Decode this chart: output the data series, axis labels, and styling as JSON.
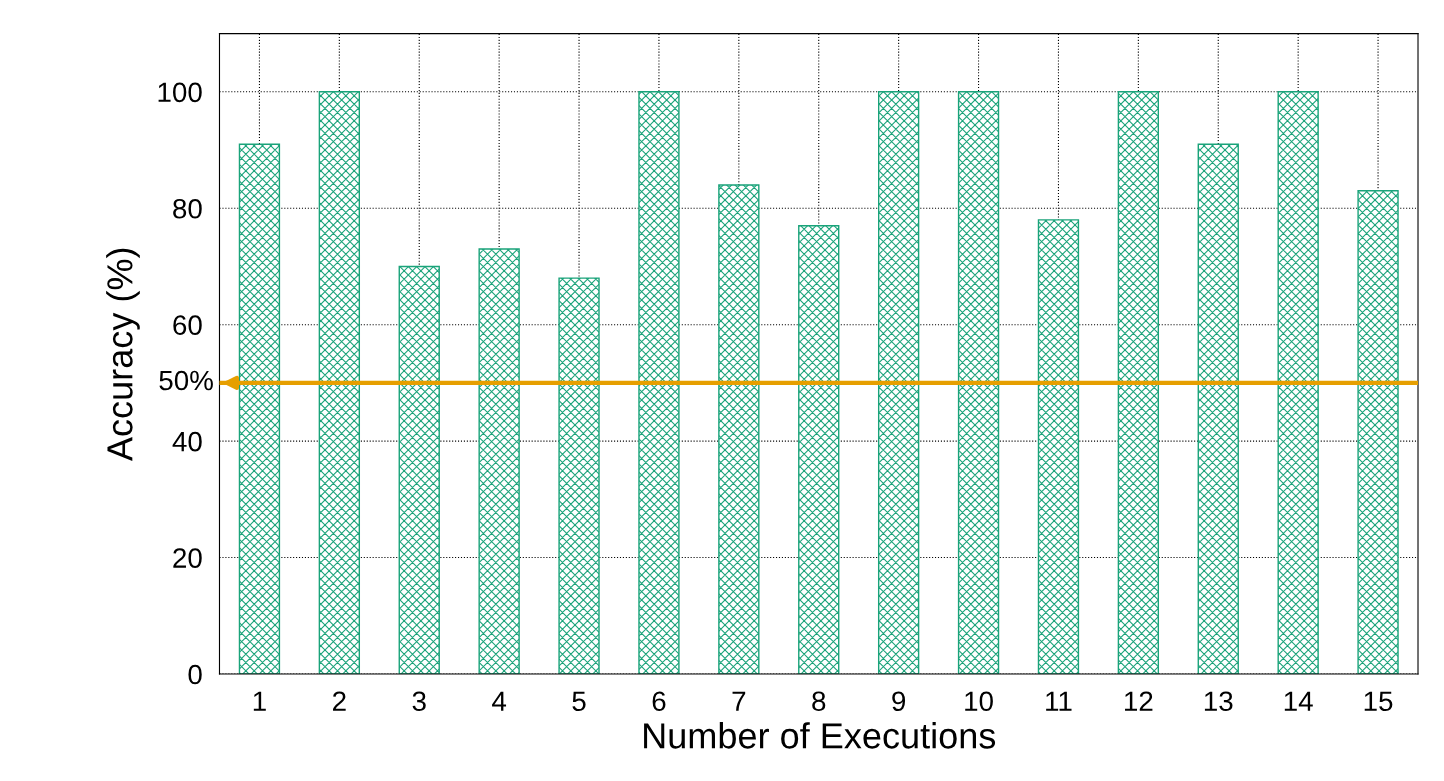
{
  "chart_data": {
    "type": "bar",
    "xlabel": "Number of Executions",
    "ylabel": "Accuracy (%)",
    "categories": [
      "1",
      "2",
      "3",
      "4",
      "5",
      "6",
      "7",
      "8",
      "9",
      "10",
      "11",
      "12",
      "13",
      "14",
      "15"
    ],
    "values": [
      91,
      100,
      70,
      73,
      68,
      100,
      84,
      77,
      100,
      100,
      78,
      100,
      91,
      100,
      83
    ],
    "color": "#1aa37a",
    "ylim": [
      0,
      110
    ],
    "yticks": [
      0,
      20,
      40,
      60,
      80,
      100
    ],
    "grid": true,
    "ref_lines": [
      {
        "axis": "y",
        "value": 50,
        "label": "50%",
        "color": "#e69f00"
      }
    ]
  }
}
